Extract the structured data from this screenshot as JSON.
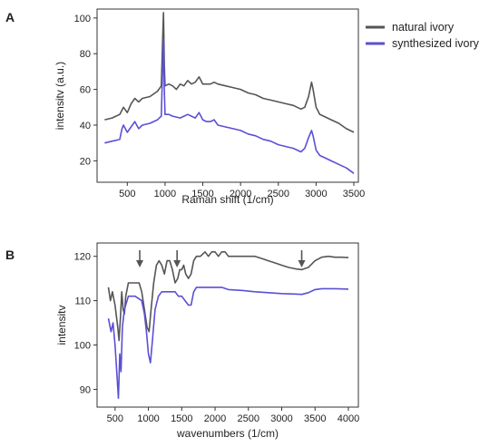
{
  "panel_labels": [
    "A",
    "B"
  ],
  "legend": [
    {
      "label": "natural ivory",
      "color": "#555555"
    },
    {
      "label": "synthesized ivory",
      "color": "#5b4fd6"
    }
  ],
  "chart_data": [
    {
      "type": "line",
      "panel": "A",
      "xlabel": "Raman shift (1/cm)",
      "ylabel": "intensitv (a.u.)",
      "xlim": [
        100,
        3560
      ],
      "ylim": [
        8,
        105
      ],
      "xticks": [
        500,
        1000,
        1500,
        2000,
        2500,
        3000,
        3500
      ],
      "yticks": [
        20,
        40,
        60,
        80,
        100
      ],
      "series": [
        {
          "name": "natural ivory",
          "color": "#555555",
          "points": [
            [
              200,
              43
            ],
            [
              300,
              44
            ],
            [
              400,
              46
            ],
            [
              450,
              50
            ],
            [
              500,
              47
            ],
            [
              550,
              52
            ],
            [
              600,
              55
            ],
            [
              650,
              53
            ],
            [
              700,
              55
            ],
            [
              800,
              56
            ],
            [
              900,
              59
            ],
            [
              950,
              62
            ],
            [
              970,
              90
            ],
            [
              980,
              103
            ],
            [
              990,
              74
            ],
            [
              1000,
              62
            ],
            [
              1050,
              63
            ],
            [
              1100,
              62
            ],
            [
              1150,
              60
            ],
            [
              1200,
              63
            ],
            [
              1250,
              62
            ],
            [
              1300,
              65
            ],
            [
              1350,
              63
            ],
            [
              1400,
              64
            ],
            [
              1450,
              67
            ],
            [
              1500,
              63
            ],
            [
              1550,
              63
            ],
            [
              1600,
              63
            ],
            [
              1650,
              64
            ],
            [
              1700,
              63
            ],
            [
              1800,
              62
            ],
            [
              1900,
              61
            ],
            [
              2000,
              60
            ],
            [
              2100,
              58
            ],
            [
              2200,
              57
            ],
            [
              2300,
              55
            ],
            [
              2400,
              54
            ],
            [
              2500,
              53
            ],
            [
              2600,
              52
            ],
            [
              2700,
              51
            ],
            [
              2800,
              49
            ],
            [
              2850,
              50
            ],
            [
              2900,
              56
            ],
            [
              2940,
              64
            ],
            [
              2960,
              60
            ],
            [
              3000,
              50
            ],
            [
              3050,
              46
            ],
            [
              3100,
              45
            ],
            [
              3200,
              43
            ],
            [
              3300,
              41
            ],
            [
              3400,
              38
            ],
            [
              3500,
              36
            ]
          ]
        },
        {
          "name": "synthesized ivory",
          "color": "#5b4fd6",
          "points": [
            [
              200,
              30
            ],
            [
              300,
              31
            ],
            [
              400,
              32
            ],
            [
              430,
              38
            ],
            [
              450,
              40
            ],
            [
              500,
              36
            ],
            [
              550,
              39
            ],
            [
              600,
              42
            ],
            [
              650,
              38
            ],
            [
              700,
              40
            ],
            [
              800,
              41
            ],
            [
              900,
              43
            ],
            [
              950,
              45
            ],
            [
              970,
              75
            ],
            [
              980,
              88
            ],
            [
              990,
              60
            ],
            [
              1000,
              46
            ],
            [
              1050,
              46
            ],
            [
              1100,
              45
            ],
            [
              1200,
              44
            ],
            [
              1300,
              46
            ],
            [
              1400,
              44
            ],
            [
              1450,
              47
            ],
            [
              1500,
              43
            ],
            [
              1550,
              42
            ],
            [
              1600,
              42
            ],
            [
              1650,
              43
            ],
            [
              1700,
              40
            ],
            [
              1800,
              39
            ],
            [
              1900,
              38
            ],
            [
              2000,
              37
            ],
            [
              2100,
              35
            ],
            [
              2200,
              34
            ],
            [
              2300,
              32
            ],
            [
              2400,
              31
            ],
            [
              2500,
              29
            ],
            [
              2600,
              28
            ],
            [
              2700,
              27
            ],
            [
              2800,
              25
            ],
            [
              2850,
              27
            ],
            [
              2900,
              33
            ],
            [
              2940,
              37
            ],
            [
              2960,
              34
            ],
            [
              3000,
              26
            ],
            [
              3050,
              23
            ],
            [
              3100,
              22
            ],
            [
              3200,
              20
            ],
            [
              3300,
              18
            ],
            [
              3400,
              16
            ],
            [
              3500,
              13
            ]
          ]
        }
      ]
    },
    {
      "type": "line",
      "panel": "B",
      "xlabel": "wavenumbers (1/cm)",
      "ylabel": "intensitv",
      "xlim": [
        230,
        4150
      ],
      "ylim": [
        86,
        123
      ],
      "xticks": [
        500,
        1000,
        1500,
        2000,
        2500,
        3000,
        3500,
        4000
      ],
      "yticks": [
        90,
        100,
        110,
        120
      ],
      "arrows_at_x": [
        870,
        1430,
        3300
      ],
      "series": [
        {
          "name": "natural ivory",
          "color": "#555555",
          "points": [
            [
              400,
              113
            ],
            [
              430,
              110
            ],
            [
              460,
              112
            ],
            [
              500,
              109
            ],
            [
              540,
              104
            ],
            [
              560,
              101
            ],
            [
              580,
              106
            ],
            [
              600,
              112
            ],
            [
              620,
              108
            ],
            [
              640,
              107
            ],
            [
              660,
              111
            ],
            [
              700,
              114
            ],
            [
              800,
              114
            ],
            [
              860,
              114
            ],
            [
              900,
              112
            ],
            [
              940,
              108
            ],
            [
              980,
              104
            ],
            [
              1010,
              103
            ],
            [
              1040,
              108
            ],
            [
              1080,
              114
            ],
            [
              1120,
              118
            ],
            [
              1160,
              119
            ],
            [
              1200,
              118
            ],
            [
              1240,
              116
            ],
            [
              1280,
              119
            ],
            [
              1320,
              119
            ],
            [
              1360,
              117
            ],
            [
              1400,
              114
            ],
            [
              1440,
              115
            ],
            [
              1470,
              117
            ],
            [
              1500,
              117
            ],
            [
              1530,
              118
            ],
            [
              1560,
              116
            ],
            [
              1600,
              115
            ],
            [
              1640,
              116
            ],
            [
              1680,
              119
            ],
            [
              1720,
              120
            ],
            [
              1780,
              120
            ],
            [
              1850,
              121
            ],
            [
              1900,
              120
            ],
            [
              1950,
              121
            ],
            [
              2000,
              121
            ],
            [
              2050,
              120
            ],
            [
              2100,
              121
            ],
            [
              2150,
              121
            ],
            [
              2200,
              120
            ],
            [
              2300,
              120
            ],
            [
              2400,
              120
            ],
            [
              2500,
              120
            ],
            [
              2600,
              120
            ],
            [
              2700,
              119.5
            ],
            [
              2800,
              119
            ],
            [
              2900,
              118.5
            ],
            [
              3000,
              118
            ],
            [
              3100,
              117.5
            ],
            [
              3200,
              117.2
            ],
            [
              3300,
              117
            ],
            [
              3400,
              117.5
            ],
            [
              3500,
              119
            ],
            [
              3600,
              119.8
            ],
            [
              3700,
              120
            ],
            [
              3800,
              119.8
            ],
            [
              3900,
              119.8
            ],
            [
              4000,
              119.7
            ]
          ]
        },
        {
          "name": "synthesized ivory",
          "color": "#5b4fd6",
          "points": [
            [
              400,
              106
            ],
            [
              440,
              103
            ],
            [
              470,
              105
            ],
            [
              500,
              100
            ],
            [
              530,
              93
            ],
            [
              550,
              88
            ],
            [
              570,
              98
            ],
            [
              590,
              94
            ],
            [
              610,
              104
            ],
            [
              640,
              108
            ],
            [
              700,
              111
            ],
            [
              800,
              111
            ],
            [
              900,
              110
            ],
            [
              940,
              107
            ],
            [
              970,
              103
            ],
            [
              1000,
              98
            ],
            [
              1030,
              96
            ],
            [
              1060,
              101
            ],
            [
              1100,
              108
            ],
            [
              1150,
              111
            ],
            [
              1200,
              112
            ],
            [
              1300,
              112
            ],
            [
              1400,
              112
            ],
            [
              1450,
              111
            ],
            [
              1500,
              111
            ],
            [
              1550,
              110
            ],
            [
              1600,
              109
            ],
            [
              1640,
              109
            ],
            [
              1680,
              112
            ],
            [
              1720,
              113
            ],
            [
              1800,
              113
            ],
            [
              1900,
              113
            ],
            [
              2000,
              113
            ],
            [
              2100,
              113
            ],
            [
              2200,
              112.5
            ],
            [
              2400,
              112.3
            ],
            [
              2600,
              112
            ],
            [
              2800,
              111.8
            ],
            [
              3000,
              111.6
            ],
            [
              3200,
              111.5
            ],
            [
              3300,
              111.4
            ],
            [
              3400,
              111.8
            ],
            [
              3500,
              112.5
            ],
            [
              3600,
              112.7
            ],
            [
              3700,
              112.7
            ],
            [
              3800,
              112.7
            ],
            [
              4000,
              112.6
            ]
          ]
        }
      ]
    }
  ]
}
